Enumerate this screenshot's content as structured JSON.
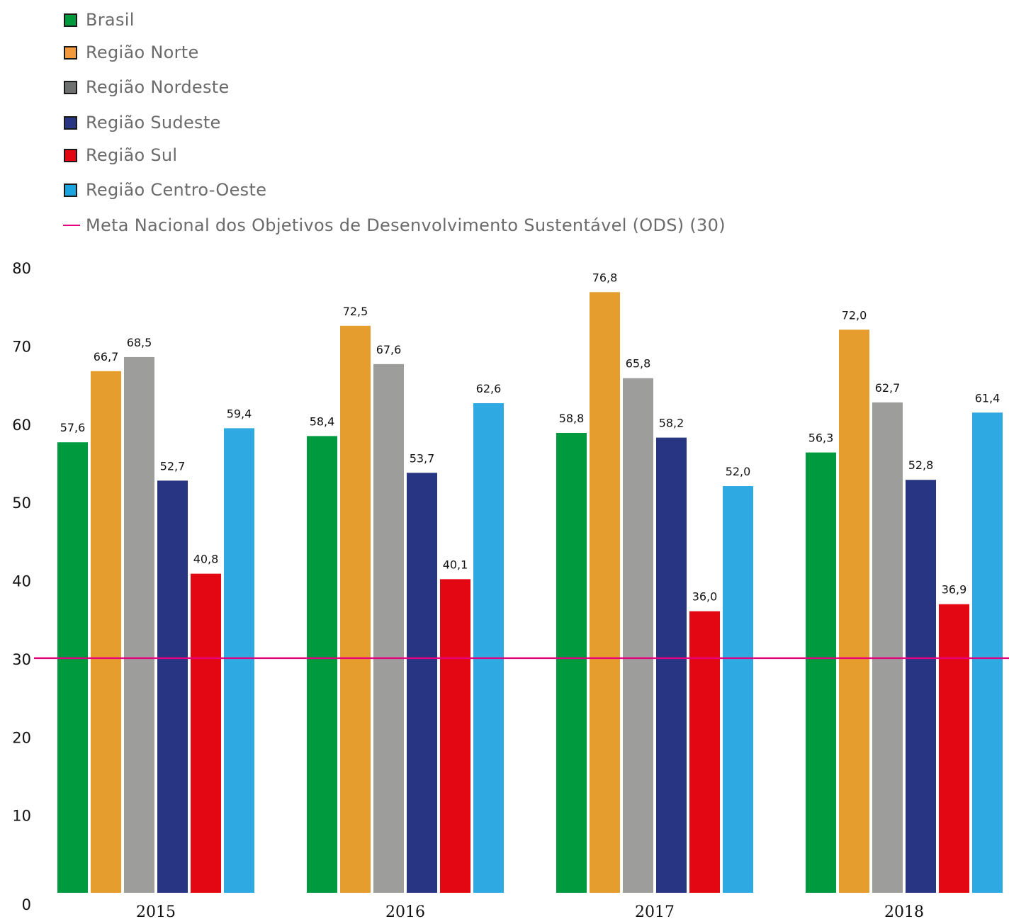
{
  "chart_data": {
    "type": "bar",
    "categories": [
      "2015",
      "2016",
      "2017",
      "2018"
    ],
    "series": [
      {
        "name": "Brasil",
        "color": "#009a3e",
        "values": [
          57.6,
          58.4,
          58.8,
          56.3
        ],
        "labels": [
          "57,6",
          "58,4",
          "58,8",
          "56,3"
        ]
      },
      {
        "name": "Região Norte",
        "color": "#e59e2d",
        "values": [
          66.7,
          72.5,
          76.8,
          72.0
        ],
        "labels": [
          "66,7",
          "72,5",
          "76,8",
          "72,0"
        ]
      },
      {
        "name": "Região Nordeste",
        "color": "#9d9d9c",
        "values": [
          68.5,
          67.6,
          65.8,
          62.7
        ],
        "labels": [
          "68,5",
          "67,6",
          "65,8",
          "62,7"
        ]
      },
      {
        "name": "Região Sudeste",
        "color": "#283583",
        "values": [
          52.7,
          53.7,
          58.2,
          52.8
        ],
        "labels": [
          "52,7",
          "53,7",
          "58,2",
          "52,8"
        ]
      },
      {
        "name": "Região Sul",
        "color": "#e30613",
        "values": [
          40.8,
          40.1,
          36.0,
          36.9
        ],
        "labels": [
          "40,8",
          "40,1",
          "36,0",
          "36,9"
        ]
      },
      {
        "name": "Região Centro-Oeste",
        "color": "#2ea9e1",
        "values": [
          59.4,
          62.6,
          52.0,
          61.4
        ],
        "labels": [
          "59,4",
          "62,6",
          "52,0",
          "61,4"
        ]
      }
    ],
    "reference_line": {
      "name": "Meta Nacional dos Objetivos de Desenvolvimento Sustentável (ODS) (30)",
      "value": 30,
      "color": "#e6007e"
    },
    "yticks": [
      "0",
      "10",
      "20",
      "30",
      "40",
      "50",
      "60",
      "70",
      "80"
    ],
    "ylim": [
      0,
      80
    ],
    "grid": false,
    "legend_position": "top-left",
    "title": "",
    "xlabel": "",
    "ylabel": ""
  },
  "legend": {
    "items": [
      {
        "label": "Brasil",
        "color": "#009a3e",
        "kind": "swatch"
      },
      {
        "label": "Região Norte",
        "color": "#f39a3c",
        "kind": "swatch"
      },
      {
        "label": "Região Nordeste",
        "color": "#6e7070",
        "kind": "swatch"
      },
      {
        "label": "Região Sudeste",
        "color": "#283583",
        "kind": "swatch"
      },
      {
        "label": "Região Sul",
        "color": "#e30613",
        "kind": "swatch"
      },
      {
        "label": "Região Centro-Oeste",
        "color": "#1aa4e0",
        "kind": "swatch"
      },
      {
        "label": "Meta Nacional dos Objetivos de Desenvolvimento Sustentável (ODS) (30)",
        "color": "#e6007e",
        "kind": "line"
      }
    ]
  }
}
